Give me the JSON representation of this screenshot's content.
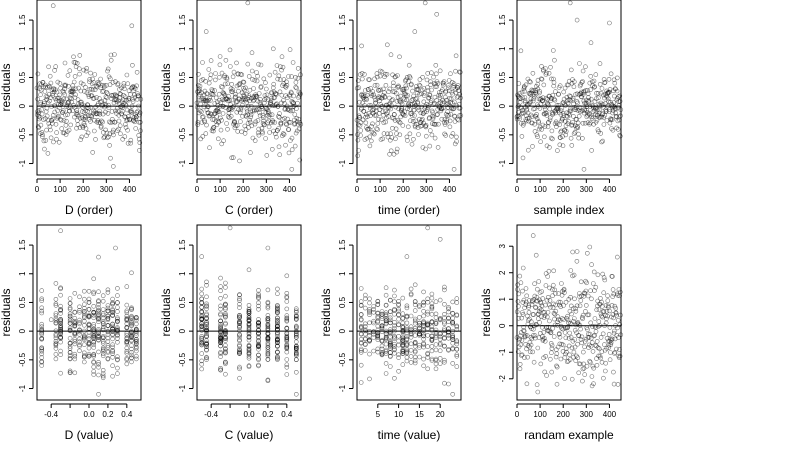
{
  "chart_data": [
    {
      "type": "scatter",
      "xlabel": "D (order)",
      "ylabel": "residuals",
      "xlim": [
        0,
        450
      ],
      "ylim": [
        -1.2,
        1.85
      ],
      "xticks": [
        0,
        100,
        200,
        300,
        400
      ],
      "yticks": [
        -1.0,
        -0.5,
        0.0,
        0.5,
        1.0,
        1.5
      ],
      "hline": 0,
      "x_kind": "index",
      "n": 450,
      "points_preview": [
        [
          15,
          0.2
        ],
        [
          70,
          1.75
        ],
        [
          120,
          0.3
        ],
        [
          210,
          -0.2
        ],
        [
          330,
          -1.05
        ],
        [
          410,
          1.4
        ]
      ]
    },
    {
      "type": "scatter",
      "xlabel": "C (order)",
      "ylabel": "residuals",
      "xlim": [
        0,
        450
      ],
      "ylim": [
        -1.2,
        1.85
      ],
      "xticks": [
        0,
        100,
        200,
        300,
        400
      ],
      "yticks": [
        -1.0,
        -0.5,
        0.0,
        0.5,
        1.0,
        1.5
      ],
      "hline": 0,
      "x_kind": "index",
      "n": 450,
      "points_preview": [
        [
          40,
          1.3
        ],
        [
          150,
          -0.9
        ],
        [
          220,
          1.8
        ],
        [
          330,
          1.0
        ],
        [
          410,
          -1.1
        ]
      ]
    },
    {
      "type": "scatter",
      "xlabel": "time (order)",
      "ylabel": "residuals",
      "xlim": [
        0,
        450
      ],
      "ylim": [
        -1.2,
        1.85
      ],
      "xticks": [
        0,
        100,
        200,
        300,
        400
      ],
      "yticks": [
        -1.0,
        -0.5,
        0.0,
        0.5,
        1.0,
        1.5
      ],
      "hline": 0,
      "x_kind": "index",
      "n": 450,
      "points_preview": [
        [
          20,
          1.05
        ],
        [
          250,
          1.3
        ],
        [
          295,
          1.8
        ],
        [
          345,
          1.6
        ],
        [
          420,
          -1.1
        ]
      ]
    },
    {
      "type": "scatter",
      "xlabel": "sample index",
      "ylabel": "residuals",
      "xlim": [
        0,
        450
      ],
      "ylim": [
        -1.2,
        1.85
      ],
      "xticks": [
        0,
        100,
        200,
        300,
        400
      ],
      "yticks": [
        -1.0,
        -0.5,
        0.0,
        0.5,
        1.0,
        1.5
      ],
      "hline": 0,
      "x_kind": "index",
      "n": 450,
      "points_preview": [
        [
          90,
          0.3
        ],
        [
          230,
          1.8
        ],
        [
          260,
          1.5
        ],
        [
          290,
          -1.1
        ],
        [
          400,
          1.45
        ]
      ]
    },
    {
      "type": "scatter",
      "xlabel": "D (value)",
      "ylabel": "residuals",
      "xlim": [
        -0.55,
        0.55
      ],
      "ylim": [
        -1.2,
        1.85
      ],
      "xticks": [
        -0.4,
        -0.2,
        0.0,
        0.2,
        0.4
      ],
      "xtick_labels": [
        "-0.4",
        "",
        "0.0",
        "0.2",
        "0.4"
      ],
      "yticks": [
        -1.0,
        -0.5,
        0.0,
        0.5,
        1.0,
        1.5
      ],
      "hline": 0,
      "x_kind": "discrete",
      "n": 450,
      "x_levels": [
        -0.5,
        -0.35,
        -0.3,
        -0.2,
        -0.15,
        -0.1,
        -0.05,
        0.0,
        0.05,
        0.1,
        0.15,
        0.2,
        0.25,
        0.3,
        0.4,
        0.45,
        0.5
      ],
      "points_preview": [
        [
          -0.3,
          1.75
        ],
        [
          0.1,
          -1.1
        ],
        [
          0.28,
          1.45
        ],
        [
          -0.4,
          0.2
        ]
      ]
    },
    {
      "type": "scatter",
      "xlabel": "C (value)",
      "ylabel": "residuals",
      "xlim": [
        -0.55,
        0.55
      ],
      "ylim": [
        -1.2,
        1.85
      ],
      "xticks": [
        -0.4,
        -0.2,
        0.0,
        0.2,
        0.4
      ],
      "xtick_labels": [
        "-0.4",
        "",
        "0.0",
        "0.2",
        "0.4"
      ],
      "yticks": [
        -1.0,
        -0.5,
        0.0,
        0.5,
        1.0,
        1.5
      ],
      "hline": 0,
      "x_kind": "discrete",
      "n": 450,
      "x_levels": [
        -0.5,
        -0.45,
        -0.3,
        -0.25,
        -0.1,
        0.0,
        0.1,
        0.2,
        0.3,
        0.4,
        0.5
      ],
      "points_preview": [
        [
          -0.2,
          1.8
        ],
        [
          0.2,
          1.45
        ],
        [
          0.5,
          -1.1
        ],
        [
          -0.5,
          1.3
        ]
      ]
    },
    {
      "type": "scatter",
      "xlabel": "time (value)",
      "ylabel": "residuals",
      "xlim": [
        0,
        25
      ],
      "ylim": [
        -1.2,
        1.85
      ],
      "xticks": [
        5,
        10,
        15,
        20
      ],
      "yticks": [
        -1.0,
        -0.5,
        0.0,
        0.5,
        1.0,
        1.5
      ],
      "hline": 0,
      "x_kind": "discrete",
      "n": 450,
      "x_levels": [
        1,
        2,
        3,
        4,
        5,
        6,
        7,
        8,
        9,
        10,
        11,
        12,
        13,
        14,
        15,
        16,
        17,
        18,
        19,
        20,
        21,
        22,
        23,
        24
      ],
      "points_preview": [
        [
          12,
          1.3
        ],
        [
          17,
          1.8
        ],
        [
          20,
          1.6
        ],
        [
          23,
          -1.1
        ]
      ]
    },
    {
      "type": "scatter",
      "xlabel": "randam example",
      "ylabel": "residuals",
      "xlim": [
        0,
        450
      ],
      "ylim": [
        -2.8,
        3.8
      ],
      "xticks": [
        0,
        100,
        200,
        300,
        400
      ],
      "yticks": [
        -2,
        -1,
        0,
        1,
        2,
        3
      ],
      "hline": 0,
      "x_kind": "index",
      "n": 450,
      "points_preview": [
        [
          70,
          3.4
        ],
        [
          90,
          -2.5
        ],
        [
          260,
          2.8
        ],
        [
          420,
          -2.2
        ]
      ]
    }
  ],
  "colors": {
    "points": "#000000",
    "frame": "#000000",
    "background": "#ffffff"
  }
}
